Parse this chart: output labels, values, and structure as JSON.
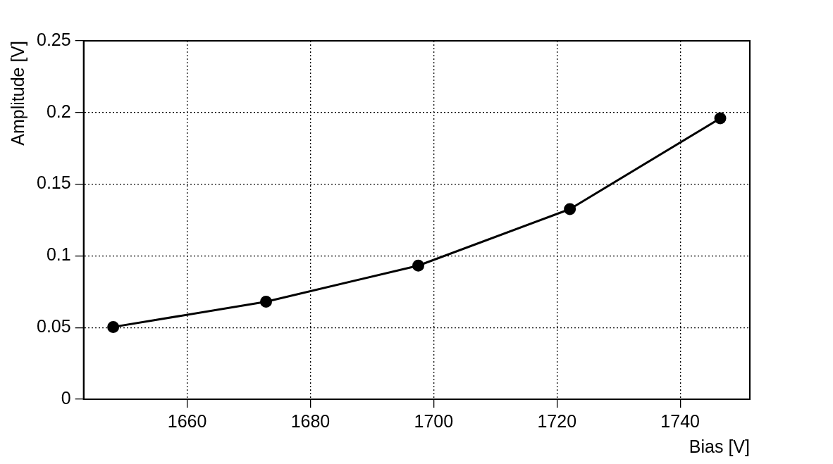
{
  "chart_data": {
    "type": "line",
    "xlabel": "Bias [V]",
    "ylabel": "Amplitude [V]",
    "x": [
      1648,
      1672.8,
      1697.5,
      1722.1,
      1746.5
    ],
    "values": [
      0.0504,
      0.068,
      0.0932,
      0.1326,
      0.196
    ],
    "color": "#000000",
    "marker": "circle",
    "line_style": "solid",
    "xlim": [
      1643.2,
      1751.3
    ],
    "xticks": [
      1660,
      1680,
      1700,
      1720,
      1740
    ],
    "ylim": [
      0,
      0.25
    ],
    "yticks": [
      0,
      0.05,
      0.1,
      0.15,
      0.2,
      0.25
    ],
    "grid": true,
    "legend": false
  }
}
